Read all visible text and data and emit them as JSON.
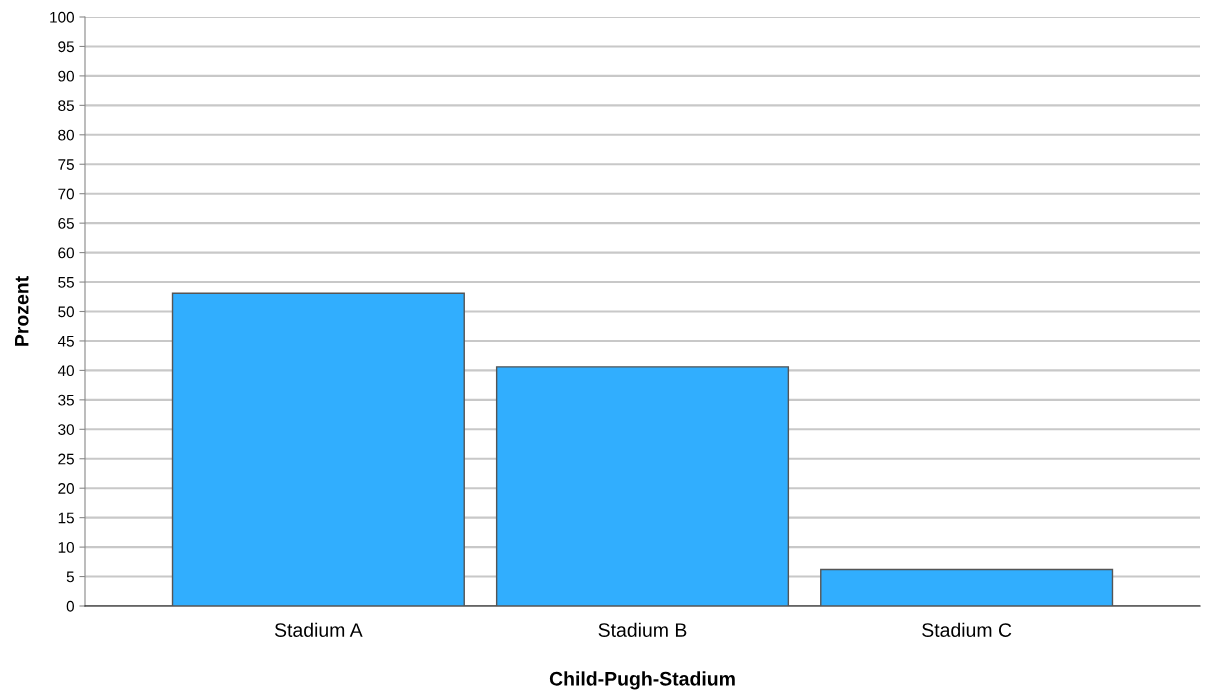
{
  "chart_data": {
    "type": "bar",
    "xlabel": "Child-Pugh-Stadium",
    "ylabel": "Prozent",
    "categories": [
      "Stadium A",
      "Stadium B",
      "Stadium C"
    ],
    "values": [
      53.1,
      40.6,
      6.2
    ],
    "color": "#31aefe",
    "ylim": [
      0,
      100
    ],
    "yticks": [
      0,
      5,
      10,
      15,
      20,
      25,
      30,
      35,
      40,
      45,
      50,
      55,
      60,
      65,
      70,
      75,
      80,
      85,
      90,
      95,
      100
    ],
    "grid": "y"
  }
}
